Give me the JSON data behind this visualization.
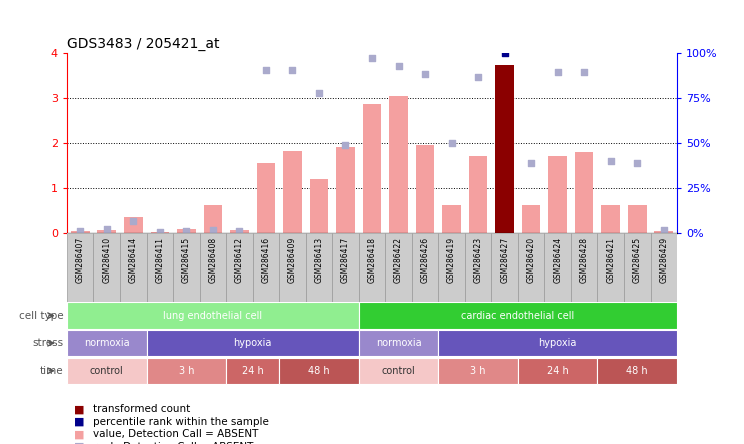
{
  "title": "GDS3483 / 205421_at",
  "samples": [
    "GSM286407",
    "GSM286410",
    "GSM286414",
    "GSM286411",
    "GSM286415",
    "GSM286408",
    "GSM286412",
    "GSM286416",
    "GSM286409",
    "GSM286413",
    "GSM286417",
    "GSM286418",
    "GSM286422",
    "GSM286426",
    "GSM286419",
    "GSM286423",
    "GSM286427",
    "GSM286420",
    "GSM286424",
    "GSM286428",
    "GSM286421",
    "GSM286425",
    "GSM286429"
  ],
  "bar_values": [
    0.04,
    0.08,
    0.35,
    0.02,
    0.1,
    0.62,
    0.07,
    1.55,
    1.82,
    1.2,
    1.92,
    2.88,
    3.05,
    1.95,
    0.62,
    1.72,
    3.74,
    0.62,
    1.72,
    1.8,
    0.62,
    0.62,
    0.05
  ],
  "rank_values": [
    0.05,
    0.1,
    0.27,
    0.02,
    0.04,
    0.07,
    0.05,
    3.62,
    3.62,
    3.12,
    1.95,
    3.9,
    3.72,
    3.55,
    2.0,
    3.48,
    4.0,
    1.55,
    3.58,
    3.58,
    1.6,
    1.55,
    0.08
  ],
  "bar_colors_absent": "#f4a0a0",
  "bar_color_special": "#8b0000",
  "rank_color_absent": "#aaaacc",
  "rank_color_special": "#00008b",
  "special_index": 16,
  "ylim_left": [
    0,
    4
  ],
  "ylim_right": [
    0,
    100
  ],
  "yticks_left": [
    0,
    1,
    2,
    3,
    4
  ],
  "yticks_right": [
    0,
    25,
    50,
    75,
    100
  ],
  "cell_type_regions": [
    {
      "label": "lung endothelial cell",
      "start": 0,
      "end": 11,
      "color": "#90ee90"
    },
    {
      "label": "cardiac endothelial cell",
      "start": 11,
      "end": 23,
      "color": "#32cd32"
    }
  ],
  "stress_regions": [
    {
      "label": "normoxia",
      "start": 0,
      "end": 3,
      "color": "#9988cc"
    },
    {
      "label": "hypoxia",
      "start": 3,
      "end": 11,
      "color": "#6655bb"
    },
    {
      "label": "normoxia",
      "start": 11,
      "end": 14,
      "color": "#9988cc"
    },
    {
      "label": "hypoxia",
      "start": 14,
      "end": 23,
      "color": "#6655bb"
    }
  ],
  "time_regions": [
    {
      "label": "control",
      "start": 0,
      "end": 3,
      "color": "#f5c8c8"
    },
    {
      "label": "3 h",
      "start": 3,
      "end": 6,
      "color": "#e08888"
    },
    {
      "label": "24 h",
      "start": 6,
      "end": 8,
      "color": "#cc6666"
    },
    {
      "label": "48 h",
      "start": 8,
      "end": 11,
      "color": "#bb5555"
    },
    {
      "label": "control",
      "start": 11,
      "end": 14,
      "color": "#f5c8c8"
    },
    {
      "label": "3 h",
      "start": 14,
      "end": 17,
      "color": "#e08888"
    },
    {
      "label": "24 h",
      "start": 17,
      "end": 20,
      "color": "#cc6666"
    },
    {
      "label": "48 h",
      "start": 20,
      "end": 23,
      "color": "#bb5555"
    }
  ],
  "legend_items": [
    {
      "label": "transformed count",
      "color": "#8b0000"
    },
    {
      "label": "percentile rank within the sample",
      "color": "#00008b"
    },
    {
      "label": "value, Detection Call = ABSENT",
      "color": "#f4a0a0"
    },
    {
      "label": "rank, Detection Call = ABSENT",
      "color": "#aaaacc"
    }
  ],
  "row_labels": [
    "cell type",
    "stress",
    "time"
  ],
  "row_label_color": "#555555",
  "tick_box_color": "#cccccc",
  "tick_box_edge_color": "#999999"
}
